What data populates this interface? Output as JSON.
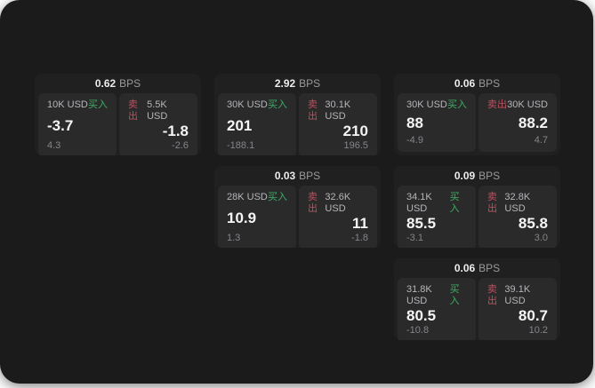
{
  "colors": {
    "outer_bg": "#ffffff",
    "canvas_bg": "#1b1b1c",
    "card_bg": "#202021",
    "panel_bg": "#2a2a2b",
    "bps_value": "#ececec",
    "bps_label": "#9a9a9a",
    "amount": "#b6b6ba",
    "buy": "#3fae63",
    "sell": "#c24f5c",
    "value": "#f5f5f6",
    "delta": "#85858a"
  },
  "labels": {
    "bps_unit": "BPS",
    "buy": "买入",
    "sell": "卖出"
  },
  "cards": [
    {
      "row": 1,
      "col": 1,
      "bps": "0.62",
      "buy": {
        "amount": "10K USD",
        "value": "-3.7",
        "delta": "4.3"
      },
      "sell": {
        "amount": "5.5K USD",
        "value": "-1.8",
        "delta": "-2.6"
      }
    },
    {
      "row": 1,
      "col": 2,
      "bps": "2.92",
      "buy": {
        "amount": "30K USD",
        "value": "201",
        "delta": "-188.1"
      },
      "sell": {
        "amount": "30.1K USD",
        "value": "210",
        "delta": "196.5"
      }
    },
    {
      "row": 1,
      "col": 3,
      "bps": "0.06",
      "buy": {
        "amount": "30K USD",
        "value": "88",
        "delta": "-4.9"
      },
      "sell": {
        "amount": "30K USD",
        "value": "88.2",
        "delta": "4.7"
      }
    },
    {
      "row": 2,
      "col": 2,
      "bps": "0.03",
      "buy": {
        "amount": "28K USD",
        "value": "10.9",
        "delta": "1.3"
      },
      "sell": {
        "amount": "32.6K USD",
        "value": "11",
        "delta": "-1.8"
      }
    },
    {
      "row": 2,
      "col": 3,
      "bps": "0.09",
      "buy": {
        "amount": "34.1K USD",
        "value": "85.5",
        "delta": "-3.1"
      },
      "sell": {
        "amount": "32.8K USD",
        "value": "85.8",
        "delta": "3.0"
      }
    },
    {
      "row": 3,
      "col": 3,
      "bps": "0.06",
      "buy": {
        "amount": "31.8K USD",
        "value": "80.5",
        "delta": "-10.8"
      },
      "sell": {
        "amount": "39.1K USD",
        "value": "80.7",
        "delta": "10.2"
      }
    }
  ]
}
